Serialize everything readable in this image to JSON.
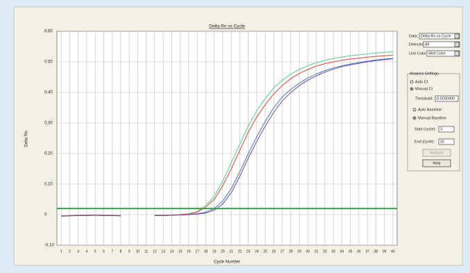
{
  "chart_data": {
    "type": "line",
    "title": "Delta Rn vs Cycle",
    "x_label": "Cycle Number",
    "y_label": "Delta Rn",
    "x": [
      1,
      2,
      3,
      4,
      5,
      6,
      7,
      8,
      9,
      10,
      11,
      12,
      13,
      14,
      15,
      16,
      17,
      18,
      19,
      20,
      21,
      22,
      23,
      24,
      25,
      26,
      27,
      28,
      29,
      30,
      31,
      32,
      33,
      34,
      35,
      36,
      37,
      38,
      39,
      40
    ],
    "xlim": [
      0.5,
      40.5
    ],
    "xticks": [
      1,
      2,
      3,
      4,
      5,
      6,
      7,
      8,
      9,
      10,
      11,
      12,
      13,
      14,
      15,
      16,
      17,
      18,
      19,
      20,
      21,
      22,
      23,
      24,
      25,
      26,
      27,
      28,
      29,
      30,
      31,
      32,
      33,
      34,
      35,
      36,
      37,
      38,
      39,
      40
    ],
    "ylim": [
      -0.1,
      0.6
    ],
    "yticks": [
      {
        "value": -0.1,
        "label": "-0.10"
      },
      0,
      {
        "value": 0.1,
        "label": "0.10"
      },
      {
        "value": 0.2,
        "label": "0.20"
      },
      {
        "value": 0.3,
        "label": "0.30"
      },
      {
        "value": 0.4,
        "label": "0.40"
      },
      {
        "value": 0.5,
        "label": "0.50"
      },
      {
        "value": 0.6,
        "label": "0.60"
      }
    ],
    "grid": true,
    "threshold": 0.02,
    "threshold_color": "#2e9a3a",
    "series": [
      {
        "color": "#5fc98a",
        "values": [
          -0.004,
          -0.003,
          -0.002,
          -0.002,
          -0.001,
          -0.002,
          -0.002,
          -0.003,
          null,
          null,
          null,
          -0.002,
          -0.002,
          -0.001,
          0,
          0.003,
          0.01,
          0.03,
          0.06,
          0.11,
          0.17,
          0.23,
          0.29,
          0.34,
          0.38,
          0.415,
          0.44,
          0.46,
          0.475,
          0.487,
          0.497,
          0.505,
          0.511,
          0.516,
          0.52,
          0.523,
          0.526,
          0.529,
          0.531,
          0.533
        ]
      },
      {
        "color": "#e0483c",
        "values": [
          -0.004,
          -0.003,
          -0.002,
          -0.002,
          -0.001,
          -0.002,
          -0.002,
          -0.003,
          null,
          null,
          null,
          -0.002,
          -0.002,
          -0.001,
          0,
          0.002,
          0.008,
          0.025,
          0.05,
          0.095,
          0.15,
          0.21,
          0.27,
          0.32,
          0.36,
          0.395,
          0.423,
          0.445,
          0.462,
          0.475,
          0.486,
          0.494,
          0.5,
          0.505,
          0.509,
          0.512,
          0.515,
          0.518,
          0.52,
          0.522
        ]
      },
      {
        "color": "#4a6fd6",
        "values": [
          -0.005,
          -0.004,
          -0.003,
          -0.003,
          -0.002,
          -0.003,
          -0.003,
          -0.004,
          null,
          null,
          null,
          -0.003,
          -0.003,
          -0.002,
          -0.001,
          0,
          0.003,
          0.008,
          0.02,
          0.045,
          0.085,
          0.14,
          0.2,
          0.255,
          0.305,
          0.35,
          0.385,
          0.41,
          0.43,
          0.447,
          0.46,
          0.471,
          0.48,
          0.487,
          0.493,
          0.498,
          0.502,
          0.506,
          0.509,
          0.511
        ]
      },
      {
        "color": "#6a4f8c",
        "values": [
          -0.005,
          -0.004,
          -0.003,
          -0.003,
          -0.002,
          -0.003,
          -0.003,
          -0.004,
          null,
          null,
          null,
          -0.003,
          -0.003,
          -0.002,
          -0.001,
          0,
          0.002,
          0.005,
          0.015,
          0.035,
          0.072,
          0.125,
          0.185,
          0.24,
          0.29,
          0.335,
          0.372,
          0.4,
          0.422,
          0.44,
          0.454,
          0.466,
          0.476,
          0.484,
          0.49,
          0.495,
          0.5,
          0.504,
          0.507,
          0.51
        ]
      }
    ]
  },
  "settings_panel": {
    "data_label": "Data:",
    "data_value": "Delta Rn vs Cycle",
    "detector_label": "Detector:",
    "detector_value": "All",
    "line_color_label": "Line Color:",
    "line_color_value": "Well Color",
    "analysis_title": "Analysis Settings",
    "auto_ct": "Auto Ct",
    "manual_ct": "Manual Ct",
    "threshold_label": "Threshold:",
    "threshold_value": "0.0200000",
    "auto_baseline": "Auto Baseline",
    "manual_baseline": "Manual Baseline",
    "start_label": "Start (cycle):",
    "start_value": "3",
    "end_label": "End (cycle):",
    "end_value": "15",
    "analyze": "Analyze",
    "help": "Help"
  }
}
